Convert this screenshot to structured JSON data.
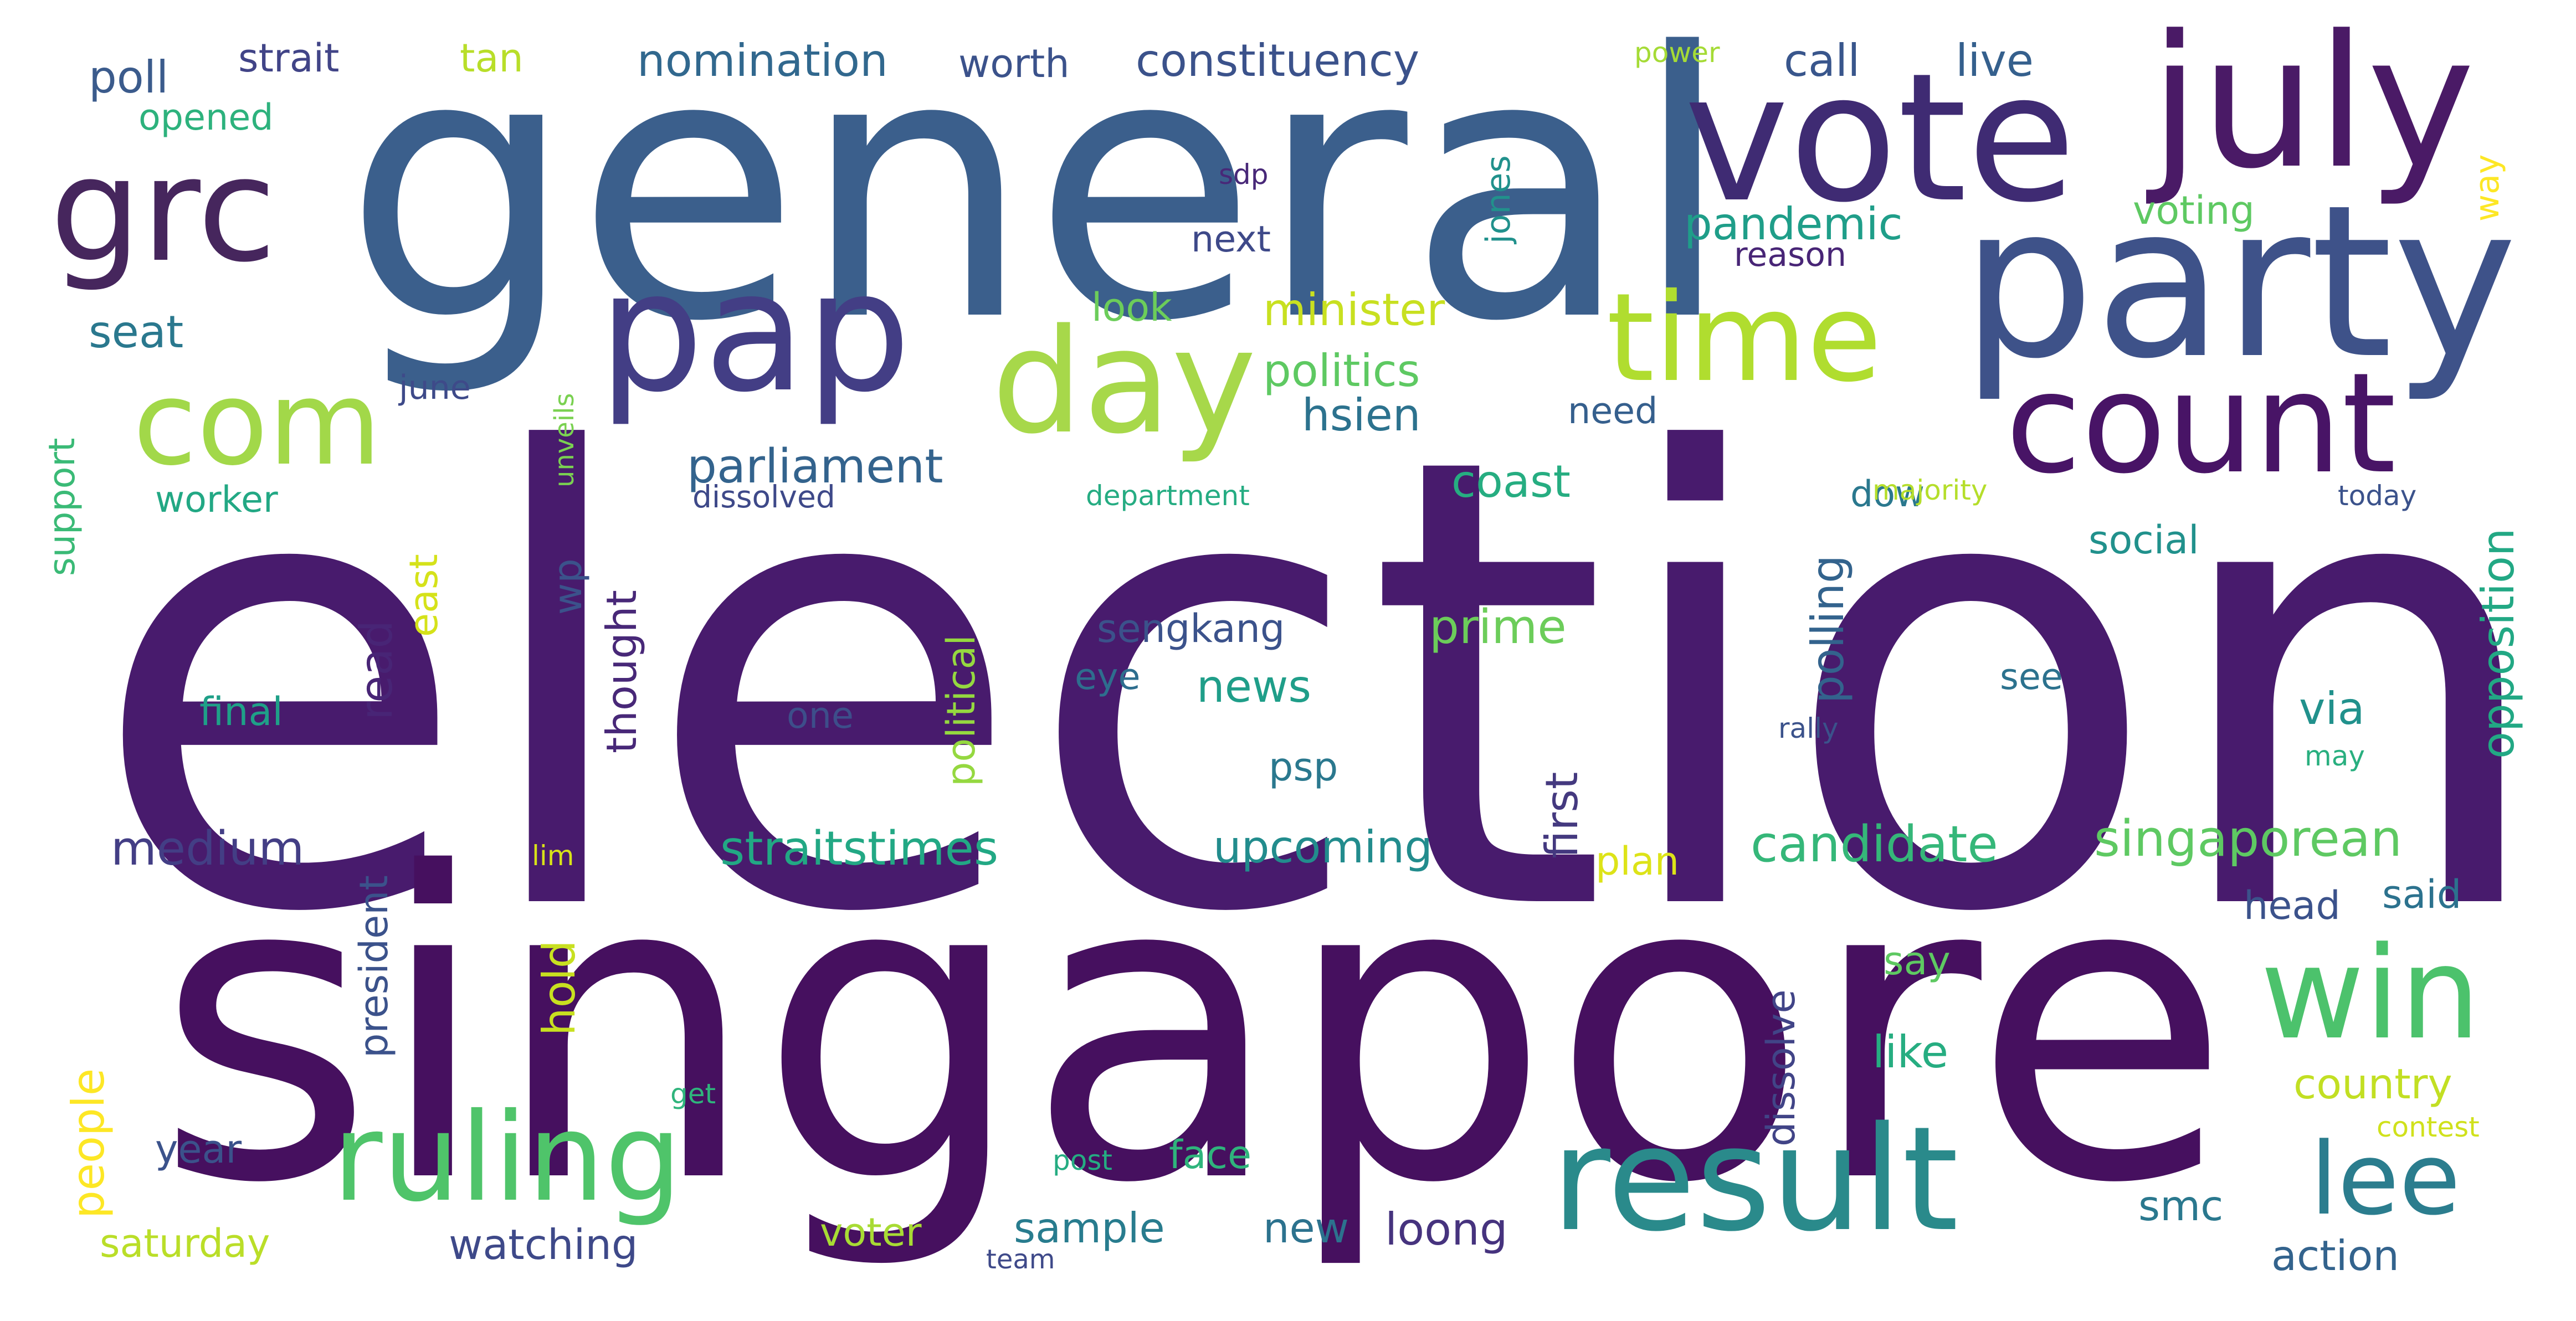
{
  "words": [
    {
      "text": "election",
      "color": "#481b6d"
    },
    {
      "text": "singapore",
      "color": "#46105f"
    },
    {
      "text": "general",
      "color": "#3b5f8c"
    },
    {
      "text": "vote",
      "color": "#3f2b73"
    },
    {
      "text": "july",
      "color": "#4a1a66"
    },
    {
      "text": "party",
      "color": "#3e5289"
    },
    {
      "text": "pap",
      "color": "#433e85"
    },
    {
      "text": "grc",
      "color": "#46265d"
    },
    {
      "text": "day",
      "color": "#a7d84a"
    },
    {
      "text": "time",
      "color": "#b0dd2f"
    },
    {
      "text": "count",
      "color": "#481466"
    },
    {
      "text": "com",
      "color": "#a2d849"
    },
    {
      "text": "result",
      "color": "#2a8a8b"
    },
    {
      "text": "ruling",
      "color": "#4fc46a"
    },
    {
      "text": "win",
      "color": "#4cc26c"
    },
    {
      "text": "lee",
      "color": "#2b7d8e"
    },
    {
      "text": "poll",
      "color": "#3b5b8c"
    },
    {
      "text": "strait",
      "color": "#414487"
    },
    {
      "text": "tan",
      "color": "#b8de29"
    },
    {
      "text": "nomination",
      "color": "#31688e"
    },
    {
      "text": "worth",
      "color": "#3b528b"
    },
    {
      "text": "constituency",
      "color": "#3b528b"
    },
    {
      "text": "power",
      "color": "#a5db36"
    },
    {
      "text": "call",
      "color": "#39568c"
    },
    {
      "text": "live",
      "color": "#35608d"
    },
    {
      "text": "opened",
      "color": "#2db27d"
    },
    {
      "text": "sdp",
      "color": "#482878"
    },
    {
      "text": "jones",
      "color": "#21918c"
    },
    {
      "text": "pandemic",
      "color": "#1f9e89"
    },
    {
      "text": "voting",
      "color": "#5ec962"
    },
    {
      "text": "way",
      "color": "#fde725"
    },
    {
      "text": "next",
      "color": "#3e4989"
    },
    {
      "text": "reason",
      "color": "#482576"
    },
    {
      "text": "look",
      "color": "#6ccd5a"
    },
    {
      "text": "minister",
      "color": "#c8e020"
    },
    {
      "text": "seat",
      "color": "#2a788e"
    },
    {
      "text": "politics",
      "color": "#5ec962"
    },
    {
      "text": "hsien",
      "color": "#2c728e"
    },
    {
      "text": "june",
      "color": "#3e4a89"
    },
    {
      "text": "unveils",
      "color": "#7ad151"
    },
    {
      "text": "need",
      "color": "#355f8d"
    },
    {
      "text": "support",
      "color": "#3aba76"
    },
    {
      "text": "parliament",
      "color": "#33638d"
    },
    {
      "text": "dow",
      "color": "#2a788e"
    },
    {
      "text": "majority",
      "color": "#b5de2b"
    },
    {
      "text": "today",
      "color": "#3b528b"
    },
    {
      "text": "worker",
      "color": "#22a884"
    },
    {
      "text": "dissolved",
      "color": "#3e4989"
    },
    {
      "text": "department",
      "color": "#25ac82"
    },
    {
      "text": "coast",
      "color": "#26ad81"
    },
    {
      "text": "social",
      "color": "#21918c"
    },
    {
      "text": "opposition",
      "color": "#22a884"
    },
    {
      "text": "polling",
      "color": "#33638d"
    },
    {
      "text": "wp",
      "color": "#3b528b"
    },
    {
      "text": "east",
      "color": "#d5e21a"
    },
    {
      "text": "read",
      "color": "#482576"
    },
    {
      "text": "thought",
      "color": "#482878"
    },
    {
      "text": "sengkang",
      "color": "#3b528b"
    },
    {
      "text": "prime",
      "color": "#6ccd5a"
    },
    {
      "text": "eye",
      "color": "#2e6e8e"
    },
    {
      "text": "news",
      "color": "#1f9e89"
    },
    {
      "text": "see",
      "color": "#2c728e"
    },
    {
      "text": "political",
      "color": "#95d840"
    },
    {
      "text": "first",
      "color": "#44397f"
    },
    {
      "text": "final",
      "color": "#1fa088"
    },
    {
      "text": "one",
      "color": "#3d4e8a"
    },
    {
      "text": "via",
      "color": "#21918c"
    },
    {
      "text": "rally",
      "color": "#3b528b"
    },
    {
      "text": "psp",
      "color": "#2a788e"
    },
    {
      "text": "may",
      "color": "#29af7f"
    },
    {
      "text": "medium",
      "color": "#433e85"
    },
    {
      "text": "straitstimes",
      "color": "#22a884"
    },
    {
      "text": "upcoming",
      "color": "#228c8d"
    },
    {
      "text": "candidate",
      "color": "#35b779"
    },
    {
      "text": "singaporean",
      "color": "#5ec962"
    },
    {
      "text": "president",
      "color": "#3b528b"
    },
    {
      "text": "lim",
      "color": "#d8e219"
    },
    {
      "text": "plan",
      "color": "#dde318"
    },
    {
      "text": "hold",
      "color": "#c8e020"
    },
    {
      "text": "head",
      "color": "#3b528b"
    },
    {
      "text": "said",
      "color": "#2c728e"
    },
    {
      "text": "dissolve",
      "color": "#414487"
    },
    {
      "text": "say",
      "color": "#5ec962"
    },
    {
      "text": "people",
      "color": "#fde725"
    },
    {
      "text": "like",
      "color": "#26ad81"
    },
    {
      "text": "country",
      "color": "#c2df23"
    },
    {
      "text": "get",
      "color": "#2fb47c"
    },
    {
      "text": "contest",
      "color": "#d0e11c"
    },
    {
      "text": "year",
      "color": "#3b528b"
    },
    {
      "text": "post",
      "color": "#25ac82"
    },
    {
      "text": "face",
      "color": "#2fb47c"
    },
    {
      "text": "smc",
      "color": "#2a788e"
    },
    {
      "text": "saturday",
      "color": "#bade28"
    },
    {
      "text": "watching",
      "color": "#3e4989"
    },
    {
      "text": "voter",
      "color": "#a8db34"
    },
    {
      "text": "sample",
      "color": "#287c8e"
    },
    {
      "text": "new",
      "color": "#2c728e"
    },
    {
      "text": "loong",
      "color": "#46337e"
    },
    {
      "text": "team",
      "color": "#3e4989"
    },
    {
      "text": "action",
      "color": "#33638d"
    }
  ]
}
